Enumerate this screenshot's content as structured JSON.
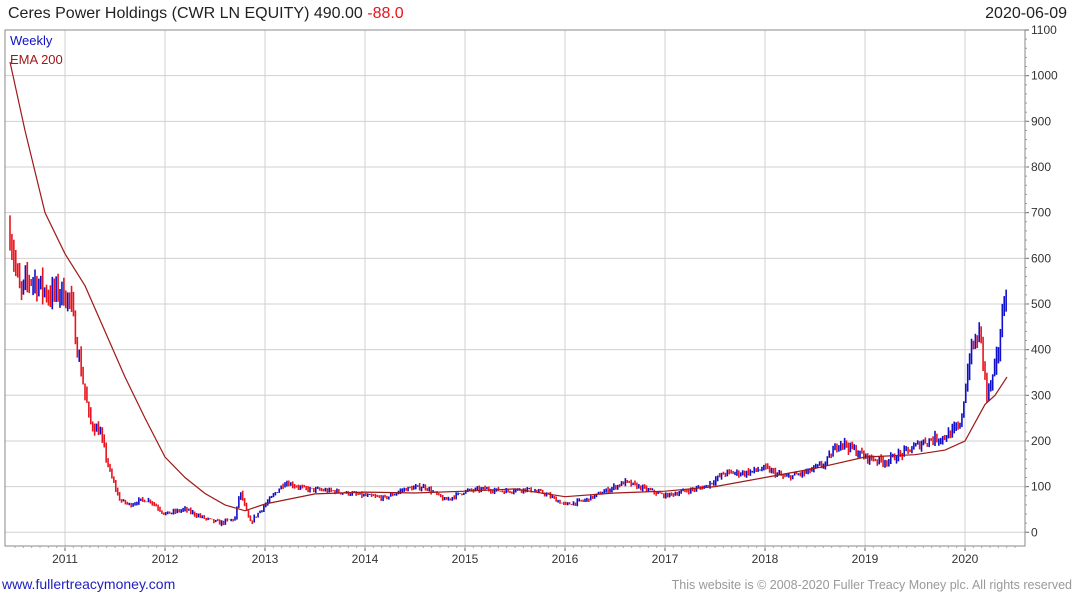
{
  "header": {
    "title_prefix": "Ceres Power Holdings (CWR LN EQUITY) 490.00",
    "change": "-88.0",
    "date": "2020-06-09"
  },
  "footer": {
    "site": "www.fullertreacymoney.com",
    "copyright": "This website is © 2008-2020 Fuller Treacy Money plc. All rights reserved"
  },
  "colors": {
    "up_bar": "#1010c8",
    "down_bar": "#e8141e",
    "ema": "#a01818",
    "grid": "#d0d0d0",
    "change_text": "#e8141e"
  },
  "chart_data": {
    "type": "line",
    "legend": [
      "Weekly",
      "EMA 200"
    ],
    "legend_placement": "top-left",
    "grid": true,
    "y_axis_side": "right",
    "ylim": [
      -30,
      1100
    ],
    "yticks": [
      0,
      100,
      200,
      300,
      400,
      500,
      600,
      700,
      800,
      900,
      1000,
      1100
    ],
    "xlim": [
      2010.45,
      2020.5
    ],
    "xticks": [
      "2011",
      "2012",
      "2013",
      "2014",
      "2015",
      "2016",
      "2017",
      "2018",
      "2019",
      "2020"
    ],
    "series": [
      {
        "name": "Weekly",
        "kind": "price_bars",
        "x": [
          2010.45,
          2010.55,
          2010.65,
          2010.75,
          2010.85,
          2010.95,
          2011.05,
          2011.15,
          2011.25,
          2011.35,
          2011.45,
          2011.55,
          2011.65,
          2011.75,
          2011.85,
          2012.0,
          2012.2,
          2012.4,
          2012.55,
          2012.7,
          2012.75,
          2012.85,
          2013.0,
          2013.2,
          2013.4,
          2013.7,
          2014.0,
          2014.2,
          2014.4,
          2014.6,
          2014.8,
          2015.0,
          2015.2,
          2015.4,
          2015.6,
          2015.8,
          2016.0,
          2016.2,
          2016.4,
          2016.6,
          2016.8,
          2017.0,
          2017.2,
          2017.4,
          2017.6,
          2017.8,
          2018.0,
          2018.2,
          2018.4,
          2018.6,
          2018.75,
          2019.0,
          2019.2,
          2019.4,
          2019.6,
          2019.8,
          2019.95,
          2020.05,
          2020.15,
          2020.22,
          2020.3,
          2020.38,
          2020.42
        ],
        "values": [
          660,
          520,
          560,
          540,
          520,
          530,
          510,
          370,
          240,
          220,
          130,
          70,
          60,
          70,
          70,
          40,
          50,
          30,
          20,
          30,
          90,
          20,
          60,
          110,
          95,
          90,
          80,
          75,
          95,
          100,
          70,
          90,
          95,
          90,
          95,
          85,
          60,
          70,
          90,
          110,
          95,
          80,
          90,
          100,
          130,
          130,
          140,
          120,
          130,
          150,
          200,
          165,
          155,
          175,
          200,
          210,
          230,
          390,
          440,
          300,
          350,
          480,
          560
        ]
      },
      {
        "name": "EMA 200",
        "kind": "line",
        "x": [
          2010.45,
          2010.6,
          2010.8,
          2011.0,
          2011.2,
          2011.4,
          2011.6,
          2011.8,
          2012.0,
          2012.2,
          2012.4,
          2012.6,
          2012.8,
          2013.0,
          2013.5,
          2014.0,
          2014.5,
          2015.0,
          2015.5,
          2016.0,
          2016.5,
          2017.0,
          2017.5,
          2018.0,
          2018.5,
          2019.0,
          2019.5,
          2019.8,
          2020.0,
          2020.1,
          2020.2,
          2020.3,
          2020.42
        ],
        "values": [
          1030,
          880,
          700,
          610,
          540,
          440,
          340,
          250,
          165,
          120,
          85,
          60,
          47,
          62,
          84,
          88,
          86,
          90,
          95,
          78,
          86,
          90,
          100,
          120,
          140,
          165,
          170,
          180,
          200,
          240,
          280,
          300,
          340
        ]
      }
    ]
  }
}
